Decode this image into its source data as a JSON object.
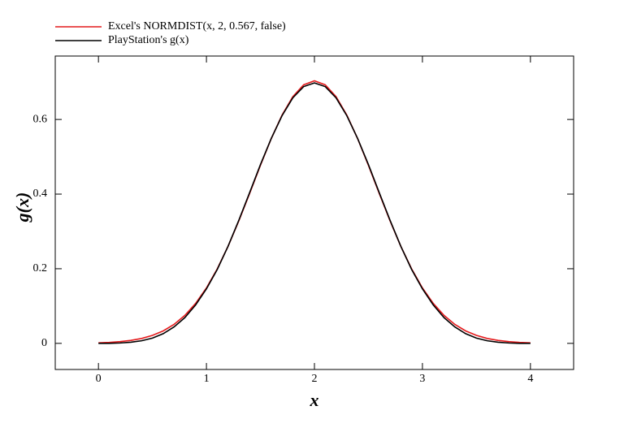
{
  "chart_data": {
    "type": "line",
    "x_label": "x",
    "y_label": "g(x)",
    "x": [
      0,
      0.1,
      0.2,
      0.3,
      0.4,
      0.5,
      0.6,
      0.7,
      0.8,
      0.9,
      1,
      1.1,
      1.2,
      1.3,
      1.4,
      1.5,
      1.6,
      1.7,
      1.8,
      1.9,
      2,
      2.1,
      2.2,
      2.3,
      2.4,
      2.5,
      2.6,
      2.7,
      2.8,
      2.9,
      3,
      3.1,
      3.2,
      3.3,
      3.4,
      3.5,
      3.6,
      3.7,
      3.8,
      3.9,
      4
    ],
    "series": [
      {
        "name": "Excel's NORMDIST(x, 2, 0.567, false)",
        "color": "#e41a1c",
        "values": [
          0.0014,
          0.0026,
          0.0046,
          0.0079,
          0.0131,
          0.0213,
          0.0334,
          0.0508,
          0.0749,
          0.1072,
          0.1485,
          0.1996,
          0.26,
          0.3284,
          0.4019,
          0.477,
          0.5486,
          0.6117,
          0.6612,
          0.6928,
          0.7036,
          0.6928,
          0.6612,
          0.6117,
          0.5486,
          0.477,
          0.4019,
          0.3284,
          0.26,
          0.1996,
          0.1485,
          0.1072,
          0.0749,
          0.0508,
          0.0334,
          0.0213,
          0.0131,
          0.0079,
          0.0046,
          0.0026,
          0.0014
        ]
      },
      {
        "name": "PlayStation's g(x)",
        "color": "#000000",
        "values": [
          0,
          0,
          0.001,
          0.003,
          0.007,
          0.014,
          0.026,
          0.044,
          0.069,
          0.103,
          0.146,
          0.198,
          0.26,
          0.33,
          0.404,
          0.479,
          0.549,
          0.61,
          0.658,
          0.688,
          0.698,
          0.688,
          0.658,
          0.61,
          0.549,
          0.479,
          0.404,
          0.33,
          0.26,
          0.198,
          0.146,
          0.103,
          0.069,
          0.044,
          0.026,
          0.014,
          0.007,
          0.003,
          0.001,
          0,
          0
        ]
      }
    ],
    "xlim": [
      -0.4,
      4.4
    ],
    "xticks": [
      0,
      1,
      2,
      3,
      4
    ],
    "ylim": [
      -0.07,
      0.77
    ],
    "yticks": [
      0,
      0.2,
      0.4,
      0.6
    ],
    "legend": "top-left-outside",
    "grid": false
  }
}
